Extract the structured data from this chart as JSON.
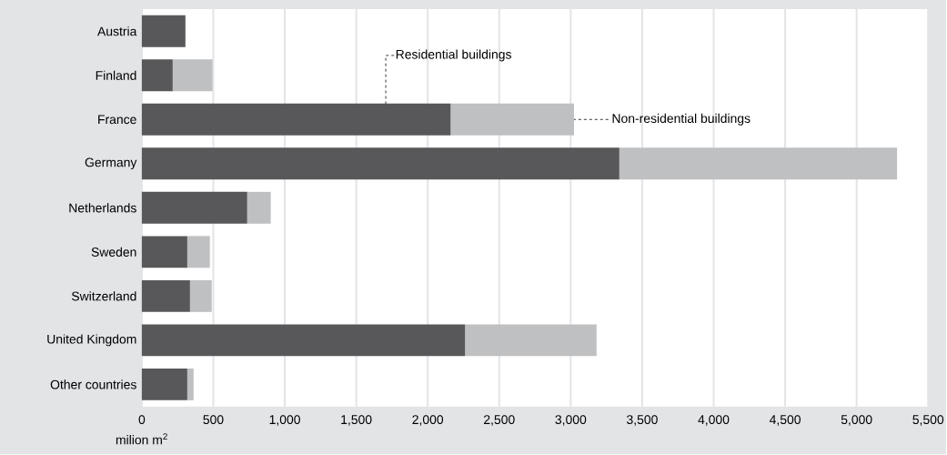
{
  "chart_data": {
    "type": "bar",
    "orientation": "horizontal",
    "stacked": true,
    "categories": [
      "Austria",
      "Finland",
      "France",
      "Germany",
      "Netherlands",
      "Sweden",
      "Switzerland",
      "United Kingdom",
      "Other countries"
    ],
    "series": [
      {
        "name": "Residential buildings",
        "color": "#58585a",
        "values": [
          305,
          216,
          2160,
          3340,
          737,
          318,
          337,
          2261,
          318
        ]
      },
      {
        "name": "Non-residential buildings",
        "color": "#bfc0c2",
        "values": [
          0,
          279,
          863,
          1943,
          165,
          158,
          152,
          920,
          44
        ]
      }
    ],
    "xlabel": "milion m$^{2}$",
    "xlim": [
      0,
      5500
    ],
    "xticks": [
      0,
      500,
      {
        "value": 1000,
        "label": "1,000"
      },
      {
        "value": 1500,
        "label": "1,500"
      },
      {
        "value": 2000,
        "label": "2,000"
      },
      {
        "value": 2500,
        "label": "2,500"
      },
      {
        "value": 3000,
        "label": "3,000"
      },
      {
        "value": 3500,
        "label": "3,500"
      },
      {
        "value": 4000,
        "label": "4,000"
      },
      {
        "value": 4500,
        "label": "4,500"
      },
      {
        "value": 5000,
        "label": "5,000"
      },
      {
        "value": 5500,
        "label": "5,500"
      }
    ],
    "grid": "x",
    "legend": false
  }
}
